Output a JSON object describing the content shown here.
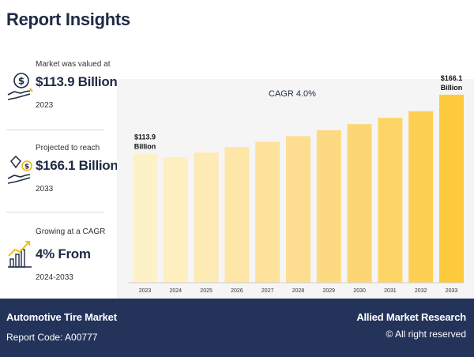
{
  "header": {
    "title": "Report Insights"
  },
  "stats": [
    {
      "icon": "money-hand-icon",
      "label": "Market was valued at",
      "value": "$113.9 Billion",
      "sub": "2023"
    },
    {
      "icon": "diamond-hand-icon",
      "label": "Projected to reach",
      "value": "$166.1 Billion",
      "sub": "2033"
    },
    {
      "icon": "growth-chart-icon",
      "label": "Growing at a CAGR",
      "value": "4% From",
      "sub": "2024-2033"
    }
  ],
  "chart_data": {
    "type": "bar",
    "title": "CAGR 4.0%",
    "categories": [
      "2023",
      "2024",
      "2025",
      "2026",
      "2027",
      "2028",
      "2029",
      "2030",
      "2031",
      "2032",
      "2033"
    ],
    "values": [
      113.9,
      111.0,
      115.0,
      120.0,
      124.5,
      129.5,
      134.7,
      140.1,
      145.7,
      151.5,
      166.1
    ],
    "annotations": [
      {
        "index": 0,
        "line1": "$113.9",
        "line2": "Billion"
      },
      {
        "index": 10,
        "line1": "$166.1",
        "line2": "Billion"
      }
    ],
    "colors": [
      "#fdf1c8",
      "#fdefc0",
      "#fdeab4",
      "#fde6a8",
      "#fde29c",
      "#fdde90",
      "#fdda82",
      "#fdd674",
      "#fdd466",
      "#fdd054",
      "#fdca3c"
    ],
    "xlabel": "",
    "ylabel": "",
    "ylim": [
      0,
      180
    ],
    "grid": false
  },
  "footer": {
    "market": "Automotive Tire Market",
    "report_code": "Report Code: A00777",
    "brand": "Allied Market Research",
    "rights": "© All right reserved"
  }
}
